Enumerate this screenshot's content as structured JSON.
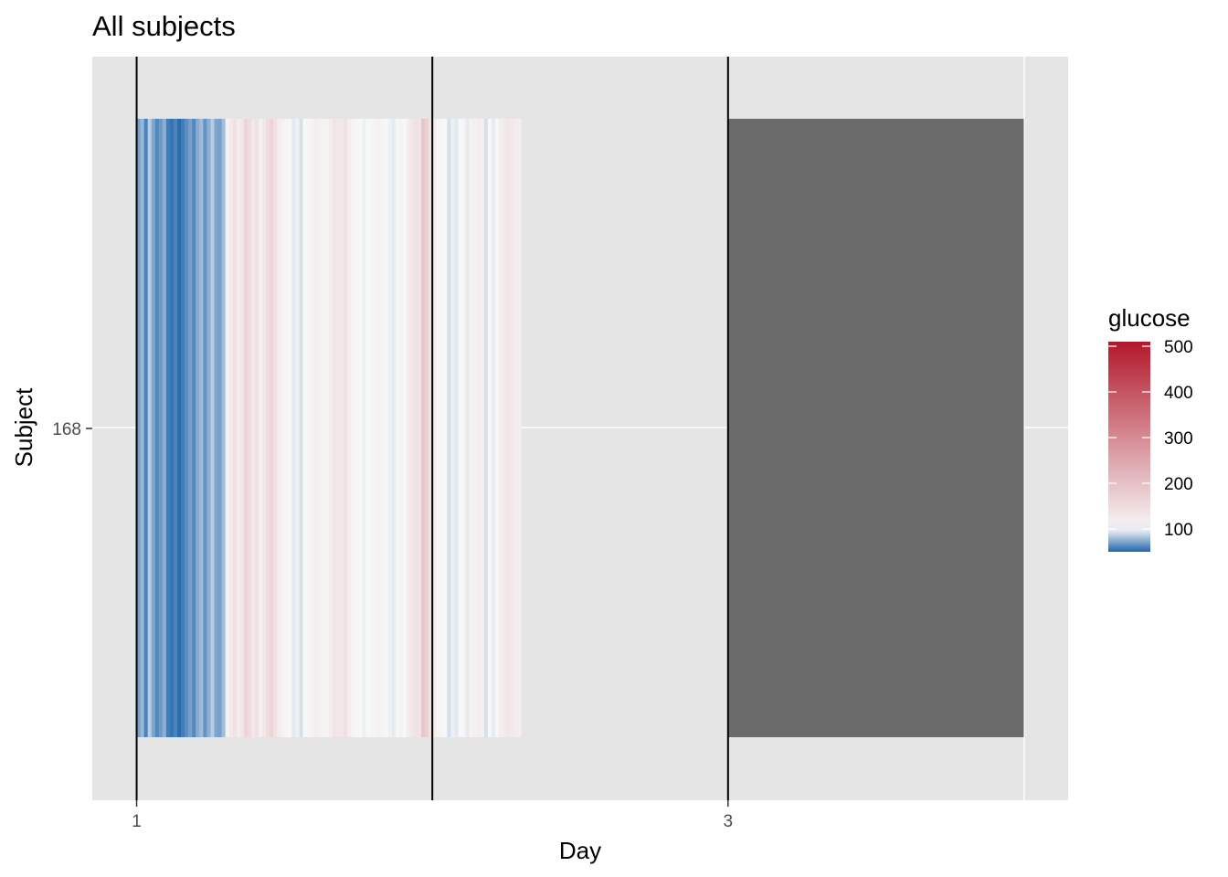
{
  "chart_data": {
    "type": "heatmap",
    "title": "All subjects",
    "xlabel": "Day",
    "ylabel": "Subject",
    "x_ticks": [
      1,
      3
    ],
    "xlim": [
      0.85,
      4.15
    ],
    "y_categories": [
      "168"
    ],
    "day_boundaries": [
      1,
      2,
      3
    ],
    "grid": true,
    "legend": {
      "title": "glucose",
      "position": "right",
      "ticks": [
        100,
        200,
        300,
        400,
        500
      ],
      "range": [
        50,
        510
      ],
      "colors": {
        "low": "#2166ac",
        "mid": "#f7f7f7",
        "high": "#b2182b",
        "midpoint": 100
      }
    },
    "missing_color": "#6b6b6b",
    "missing_range": [
      3.0,
      4.0
    ],
    "series": [
      {
        "subject": "168",
        "day_start": 1.0,
        "step": 0.0125,
        "glucose": [
          70,
          78,
          60,
          85,
          72,
          62,
          68,
          75,
          58,
          55,
          60,
          52,
          58,
          64,
          70,
          62,
          74,
          80,
          66,
          75,
          85,
          72,
          70,
          80,
          110,
          125,
          140,
          118,
          130,
          165,
          150,
          128,
          140,
          115,
          130,
          150,
          165,
          140,
          120,
          110,
          105,
          100,
          95,
          98,
          92,
          100,
          105,
          110,
          118,
          112,
          110,
          108,
          120,
          135,
          128,
          132,
          140,
          120,
          105,
          102,
          100,
          98,
          100,
          104,
          108,
          112,
          104,
          100,
          98,
          96,
          102,
          108,
          100,
          120,
          130,
          140,
          135,
          190,
          170,
          140,
          120,
          108,
          102,
          100,
          92,
          98,
          95,
          100,
          105,
          96,
          108,
          115,
          120,
          112,
          92,
          100,
          96,
          106,
          118,
          125,
          130,
          128,
          122,
          120
        ]
      }
    ]
  }
}
